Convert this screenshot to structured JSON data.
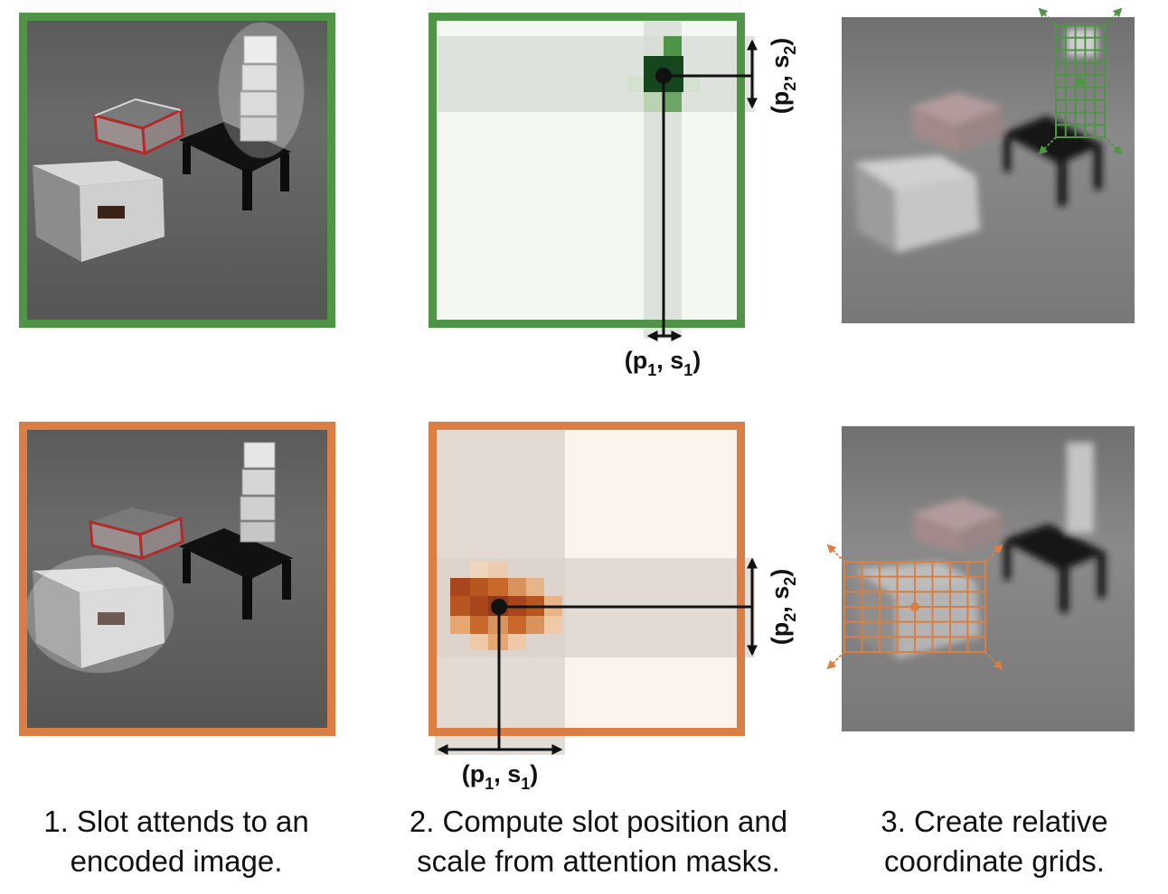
{
  "colors": {
    "slot_green": "#4f9447",
    "slot_orange": "#db7e43",
    "green_dark": "#16461d",
    "orange_dark": "#a8451c"
  },
  "icons": [
    "double-arrow-icon",
    "dot-icon",
    "coordinate-grid-icon"
  ],
  "labels": {
    "row1_x_pos": "(p",
    "row1_x_sub1": "1",
    "row1_x_mid": ", s",
    "row1_x_sub2": "1",
    "row1_x_end": ")",
    "row1_y_pos": "(p",
    "row1_y_sub1": "2",
    "row1_y_mid": ", s",
    "row1_y_sub2": "2",
    "row1_y_end": ")",
    "row2_x_pos": "(p",
    "row2_x_sub1": "1",
    "row2_x_mid": ", s",
    "row2_x_sub2": "1",
    "row2_x_end": ")",
    "row2_y_pos": "(p",
    "row2_y_sub1": "2",
    "row2_y_mid": ", s",
    "row2_y_sub2": "2",
    "row2_y_end": ")"
  },
  "captions": [
    {
      "line1": "1. Slot attends to an",
      "line2": "encoded image."
    },
    {
      "line1": "2. Compute slot position and",
      "line2": "scale from attention masks."
    },
    {
      "line1": "3. Create relative",
      "line2": "coordinate grids."
    }
  ]
}
